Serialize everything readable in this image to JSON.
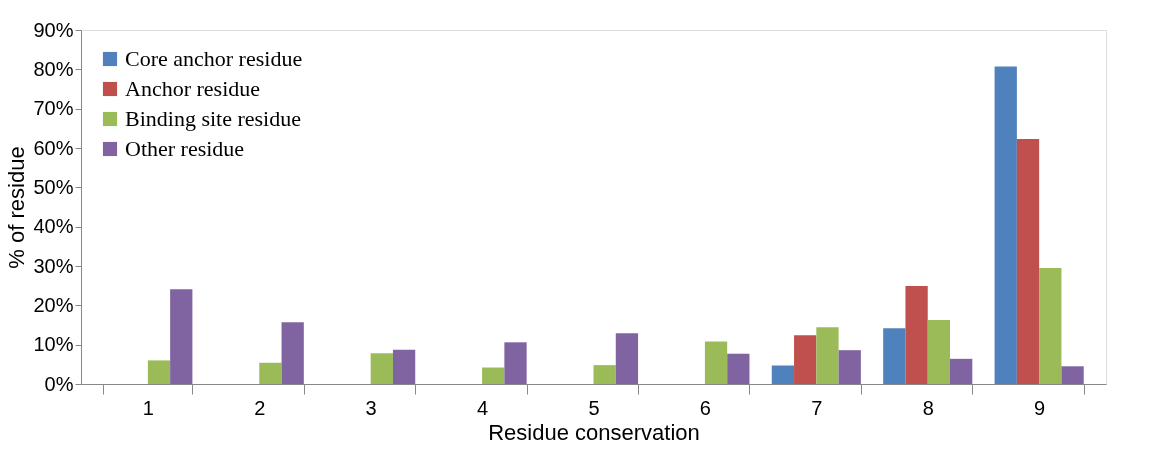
{
  "chart_data": {
    "type": "bar",
    "xlabel": "Residue conservation",
    "ylabel": "% of residue",
    "categories": [
      "1",
      "2",
      "3",
      "4",
      "5",
      "6",
      "7",
      "8",
      "9"
    ],
    "series": [
      {
        "name": "Core anchor residue",
        "color": "#4f81bd",
        "values": [
          null,
          null,
          null,
          null,
          null,
          null,
          4.7,
          14.2,
          80.7
        ]
      },
      {
        "name": "Anchor residue",
        "color": "#c0504d",
        "values": [
          null,
          null,
          null,
          null,
          null,
          null,
          12.4,
          24.9,
          62.3
        ]
      },
      {
        "name": "Binding site residue",
        "color": "#9bbb59",
        "values": [
          6.0,
          5.4,
          7.8,
          4.2,
          4.8,
          10.8,
          14.4,
          16.3,
          29.5
        ]
      },
      {
        "name": "Other residue",
        "color": "#8064a2",
        "values": [
          24.1,
          15.7,
          8.7,
          10.6,
          12.9,
          7.7,
          8.6,
          6.4,
          4.5
        ]
      }
    ],
    "ylim": [
      0,
      90
    ],
    "yticks": [
      {
        "value": 0,
        "label": "0%"
      },
      {
        "value": 10,
        "label": "10%"
      },
      {
        "value": 20,
        "label": "20%"
      },
      {
        "value": 30,
        "label": "30%"
      },
      {
        "value": 40,
        "label": "40%"
      },
      {
        "value": 50,
        "label": "50%"
      },
      {
        "value": 60,
        "label": "60%"
      },
      {
        "value": 70,
        "label": "70%"
      },
      {
        "value": 80,
        "label": "80%"
      },
      {
        "value": 90,
        "label": "90%"
      }
    ],
    "grid": false,
    "legend": "top left"
  }
}
